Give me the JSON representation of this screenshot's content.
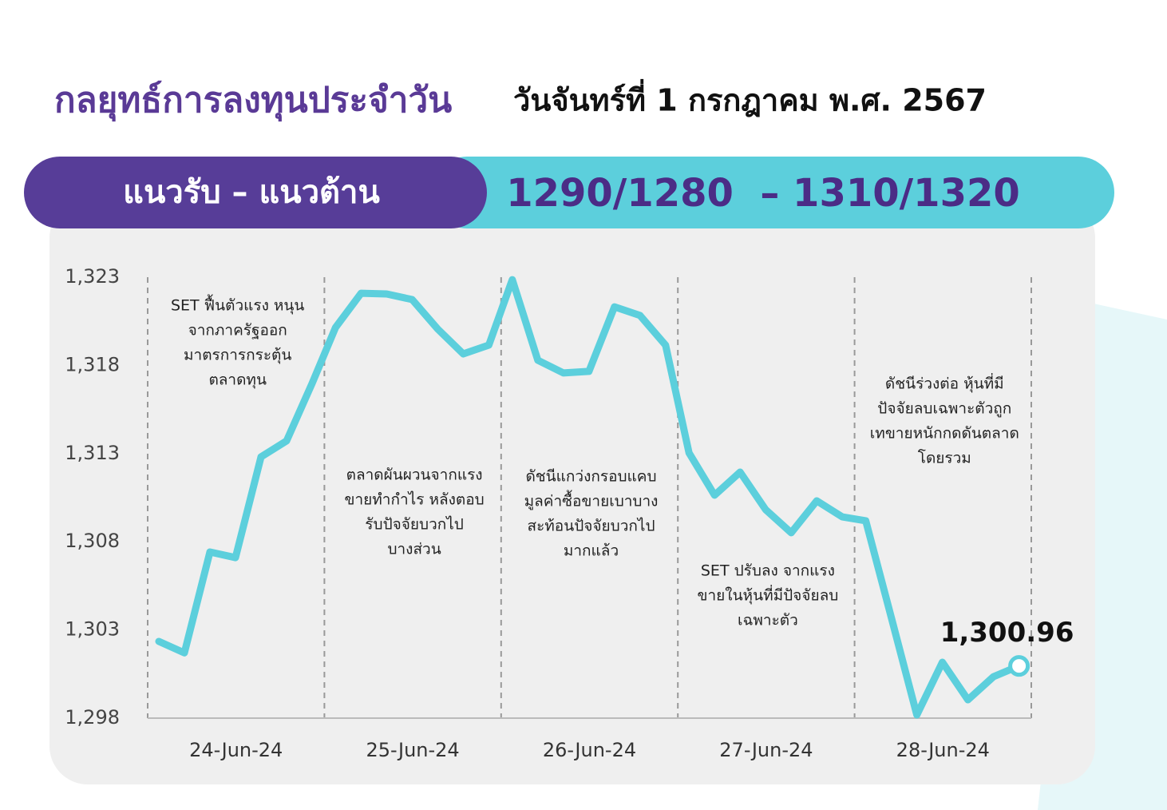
{
  "header": {
    "title": "กลยุทธ์การลงทุนประจำวัน",
    "date": "วันจันทร์ที่ 1 กรกฎาคม พ.ศ. 2567"
  },
  "banner": {
    "label": "แนวรับ – แนวต้าน",
    "levels": "1290/1280  – 1310/1320"
  },
  "chart_data": {
    "type": "line",
    "categories": [
      "24-Jun-24",
      "25-Jun-24",
      "26-Jun-24",
      "27-Jun-24",
      "28-Jun-24"
    ],
    "values": [
      [
        1302.35,
        1301.7,
        1307.42,
        1307.1,
        1312.81,
        1313.72,
        1316.98
      ],
      [
        1320.15,
        1322.09,
        1322.05,
        1321.73,
        1320.06,
        1318.65,
        1319.15
      ],
      [
        1322.86,
        1318.29,
        1317.57,
        1317.66,
        1321.32,
        1320.83,
        1319.15
      ],
      [
        1313.04,
        1310.64,
        1311.95,
        1309.82,
        1308.51,
        1310.32,
        1309.41
      ],
      [
        1309.19,
        1303.71,
        1298.18,
        1301.17,
        1299.04,
        1300.35,
        1300.96
      ]
    ],
    "value_labels": [
      [
        null,
        null,
        null,
        null,
        null,
        null,
        null
      ],
      [
        null,
        null,
        null,
        null,
        null,
        null,
        null
      ],
      [
        null,
        null,
        null,
        null,
        null,
        null,
        null
      ],
      [
        null,
        null,
        null,
        null,
        null,
        null,
        null
      ],
      [
        null,
        null,
        null,
        null,
        null,
        null,
        "1,300.96"
      ]
    ],
    "color": "#5ccfdc",
    "ylim": [
      1298,
      1323
    ],
    "yticks": [
      {
        "value": 1298,
        "label": "1,298"
      },
      {
        "value": 1303,
        "label": "1,303"
      },
      {
        "value": 1308,
        "label": "1,308"
      },
      {
        "value": 1313,
        "label": "1,313"
      },
      {
        "value": 1318,
        "label": "1,318"
      },
      {
        "value": 1323,
        "label": "1,323"
      }
    ],
    "annotations": [
      [
        "SET ฟื้นตัวแรง หนุน",
        "จากภาครัฐออก",
        "มาตรการกระตุ้น",
        "ตลาดทุน"
      ],
      [
        "ตลาดผันผวนจากแรง",
        "ขายทำกำไร หลังตอบ",
        "รับปัจจัยบวกไป",
        "บางส่วน"
      ],
      [
        "ดัชนีแกว่งกรอบแคบ",
        "มูลค่าซื้อขายเบาบาง",
        "สะท้อนปัจจัยบวกไป",
        "มากแล้ว"
      ],
      [
        "SET ปรับลง จากแรง",
        "ขายในหุ้นที่มีปัจจัยลบ",
        "เฉพาะตัว"
      ],
      [
        "ดัชนีร่วงต่อ หุ้นที่มี",
        "ปัจจัยลบเฉพาะตัวถูก",
        "เทขายหนักกดดันตลาด",
        "โดยรวม"
      ]
    ]
  }
}
